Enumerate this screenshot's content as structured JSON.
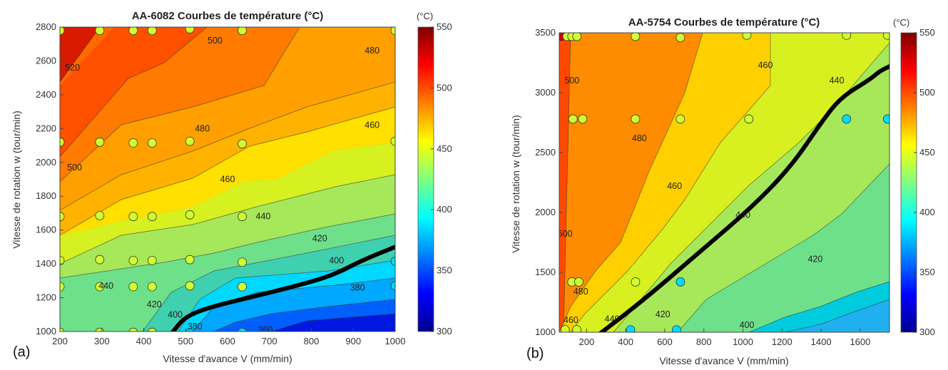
{
  "chart_data": [
    {
      "type": "contour",
      "panel_label": "(a)",
      "title": "AA-6082 Courbes de température (°C)",
      "xlabel": "Vitesse d'avance V (mm/min)",
      "ylabel": "Vitesse de rotation w (tour/min)",
      "xlim": [
        200,
        1000
      ],
      "ylim": [
        1000,
        2800
      ],
      "xticks": [
        "200",
        "300",
        "400",
        "500",
        "600",
        "700",
        "800",
        "900",
        "1000"
      ],
      "yticks": [
        "1000",
        "1200",
        "1400",
        "1600",
        "1800",
        "2000",
        "2200",
        "2400",
        "2600",
        "2800"
      ],
      "colorbar": {
        "label": "(°C)",
        "range": [
          300,
          550
        ],
        "ticks": [
          "300",
          "350",
          "400",
          "450",
          "500",
          "550"
        ]
      },
      "contour_labels": [
        {
          "text": "520",
          "x": 230,
          "y": 2560
        },
        {
          "text": "500",
          "x": 570,
          "y": 2720
        },
        {
          "text": "480",
          "x": 945,
          "y": 2660
        },
        {
          "text": "500",
          "x": 235,
          "y": 1970
        },
        {
          "text": "480",
          "x": 540,
          "y": 2200
        },
        {
          "text": "460",
          "x": 945,
          "y": 2220
        },
        {
          "text": "460",
          "x": 600,
          "y": 1900
        },
        {
          "text": "440",
          "x": 685,
          "y": 1680
        },
        {
          "text": "440",
          "x": 310,
          "y": 1270
        },
        {
          "text": "420",
          "x": 820,
          "y": 1550
        },
        {
          "text": "400",
          "x": 860,
          "y": 1420
        },
        {
          "text": "380",
          "x": 910,
          "y": 1260
        },
        {
          "text": "420",
          "x": 425,
          "y": 1160
        },
        {
          "text": "400",
          "x": 475,
          "y": 1100
        },
        {
          "text": "380",
          "x": 522,
          "y": 1030
        },
        {
          "text": "360",
          "x": 690,
          "y": 1010
        }
      ],
      "points": [
        {
          "x": 200,
          "y": 2780,
          "t": 445
        },
        {
          "x": 295,
          "y": 2780,
          "t": 445
        },
        {
          "x": 375,
          "y": 2780,
          "t": 445
        },
        {
          "x": 420,
          "y": 2780,
          "t": 445
        },
        {
          "x": 510,
          "y": 2790,
          "t": 445
        },
        {
          "x": 635,
          "y": 2780,
          "t": 445
        },
        {
          "x": 1000,
          "y": 2780,
          "t": 445
        },
        {
          "x": 200,
          "y": 2120,
          "t": 445
        },
        {
          "x": 295,
          "y": 2120,
          "t": 445
        },
        {
          "x": 375,
          "y": 2115,
          "t": 445
        },
        {
          "x": 420,
          "y": 2115,
          "t": 445
        },
        {
          "x": 510,
          "y": 2125,
          "t": 445
        },
        {
          "x": 635,
          "y": 2110,
          "t": 445
        },
        {
          "x": 1000,
          "y": 2125,
          "t": 445
        },
        {
          "x": 200,
          "y": 1680,
          "t": 445
        },
        {
          "x": 295,
          "y": 1685,
          "t": 445
        },
        {
          "x": 375,
          "y": 1680,
          "t": 445
        },
        {
          "x": 420,
          "y": 1680,
          "t": 445
        },
        {
          "x": 510,
          "y": 1690,
          "t": 445
        },
        {
          "x": 635,
          "y": 1680,
          "t": 445
        },
        {
          "x": 200,
          "y": 1420,
          "t": 445
        },
        {
          "x": 295,
          "y": 1425,
          "t": 445
        },
        {
          "x": 375,
          "y": 1420,
          "t": 445
        },
        {
          "x": 420,
          "y": 1420,
          "t": 445
        },
        {
          "x": 510,
          "y": 1425,
          "t": 445
        },
        {
          "x": 635,
          "y": 1410,
          "t": 445
        },
        {
          "x": 1000,
          "y": 1415,
          "t": 385
        },
        {
          "x": 200,
          "y": 1265,
          "t": 445
        },
        {
          "x": 295,
          "y": 1265,
          "t": 445
        },
        {
          "x": 375,
          "y": 1265,
          "t": 445
        },
        {
          "x": 420,
          "y": 1265,
          "t": 445
        },
        {
          "x": 510,
          "y": 1270,
          "t": 445
        },
        {
          "x": 635,
          "y": 1265,
          "t": 445
        },
        {
          "x": 1000,
          "y": 1270,
          "t": 385
        },
        {
          "x": 200,
          "y": 995,
          "t": 445
        },
        {
          "x": 295,
          "y": 995,
          "t": 445
        },
        {
          "x": 375,
          "y": 995,
          "t": 445
        },
        {
          "x": 420,
          "y": 995,
          "t": 445
        },
        {
          "x": 510,
          "y": 990,
          "t": 385
        },
        {
          "x": 635,
          "y": 995,
          "t": 385
        }
      ],
      "black_line": [
        [
          470,
          1000
        ],
        [
          500,
          1090
        ],
        [
          560,
          1145
        ],
        [
          650,
          1200
        ],
        [
          750,
          1260
        ],
        [
          850,
          1330
        ],
        [
          920,
          1420
        ],
        [
          1000,
          1500
        ]
      ]
    },
    {
      "type": "contour",
      "panel_label": "(b)",
      "title": "AA-5754 Courbes de température (°C)",
      "xlabel": "Vitesse d'avance V (mm/min)",
      "ylabel": "Vitesse de rotation w (tour/min)",
      "xlim": [
        60,
        1750
      ],
      "ylim": [
        1000,
        3500
      ],
      "xticks": [
        "200",
        "400",
        "600",
        "800",
        "1000",
        "1200",
        "1400",
        "1600"
      ],
      "yticks": [
        "1000",
        "1500",
        "2000",
        "2500",
        "3000",
        "3500"
      ],
      "colorbar": {
        "label": "(°C)",
        "range": [
          300,
          550
        ],
        "ticks": [
          "300",
          "350",
          "400",
          "450",
          "500",
          "550"
        ]
      },
      "contour_labels": [
        {
          "text": "500",
          "x": 125,
          "y": 3100
        },
        {
          "text": "500",
          "x": 90,
          "y": 1820
        },
        {
          "text": "480",
          "x": 470,
          "y": 2620
        },
        {
          "text": "460",
          "x": 1115,
          "y": 3230
        },
        {
          "text": "460",
          "x": 650,
          "y": 2220
        },
        {
          "text": "440",
          "x": 1480,
          "y": 3100
        },
        {
          "text": "440",
          "x": 1000,
          "y": 1980
        },
        {
          "text": "480",
          "x": 170,
          "y": 1340
        },
        {
          "text": "460",
          "x": 120,
          "y": 1100
        },
        {
          "text": "440",
          "x": 330,
          "y": 1110
        },
        {
          "text": "420",
          "x": 590,
          "y": 1150
        },
        {
          "text": "420",
          "x": 1370,
          "y": 1610
        },
        {
          "text": "400",
          "x": 1020,
          "y": 1060
        }
      ],
      "points": [
        {
          "x": 70,
          "y": 3470,
          "t": 530
        },
        {
          "x": 100,
          "y": 3470,
          "t": 445
        },
        {
          "x": 125,
          "y": 3470,
          "t": 445
        },
        {
          "x": 150,
          "y": 3470,
          "t": 445
        },
        {
          "x": 450,
          "y": 3470,
          "t": 445
        },
        {
          "x": 680,
          "y": 3460,
          "t": 445
        },
        {
          "x": 1020,
          "y": 3480,
          "t": 445
        },
        {
          "x": 1530,
          "y": 3480,
          "t": 445
        },
        {
          "x": 1740,
          "y": 3480,
          "t": 445
        },
        {
          "x": 130,
          "y": 2780,
          "t": 445
        },
        {
          "x": 180,
          "y": 2780,
          "t": 445
        },
        {
          "x": 450,
          "y": 2780,
          "t": 445
        },
        {
          "x": 680,
          "y": 2780,
          "t": 445
        },
        {
          "x": 1030,
          "y": 2780,
          "t": 445
        },
        {
          "x": 1530,
          "y": 2780,
          "t": 385
        },
        {
          "x": 1740,
          "y": 2780,
          "t": 385
        },
        {
          "x": 125,
          "y": 1420,
          "t": 445
        },
        {
          "x": 160,
          "y": 1420,
          "t": 445
        },
        {
          "x": 450,
          "y": 1420,
          "t": 445
        },
        {
          "x": 680,
          "y": 1420,
          "t": 385
        },
        {
          "x": 90,
          "y": 1020,
          "t": 445
        },
        {
          "x": 150,
          "y": 1020,
          "t": 445
        },
        {
          "x": 425,
          "y": 1020,
          "t": 385
        },
        {
          "x": 660,
          "y": 1020,
          "t": 385
        }
      ],
      "black_line": [
        [
          270,
          990
        ],
        [
          500,
          1280
        ],
        [
          800,
          1700
        ],
        [
          1050,
          2050
        ],
        [
          1250,
          2390
        ],
        [
          1400,
          2750
        ],
        [
          1500,
          2960
        ],
        [
          1650,
          3110
        ],
        [
          1700,
          3180
        ],
        [
          1750,
          3220
        ]
      ]
    }
  ]
}
